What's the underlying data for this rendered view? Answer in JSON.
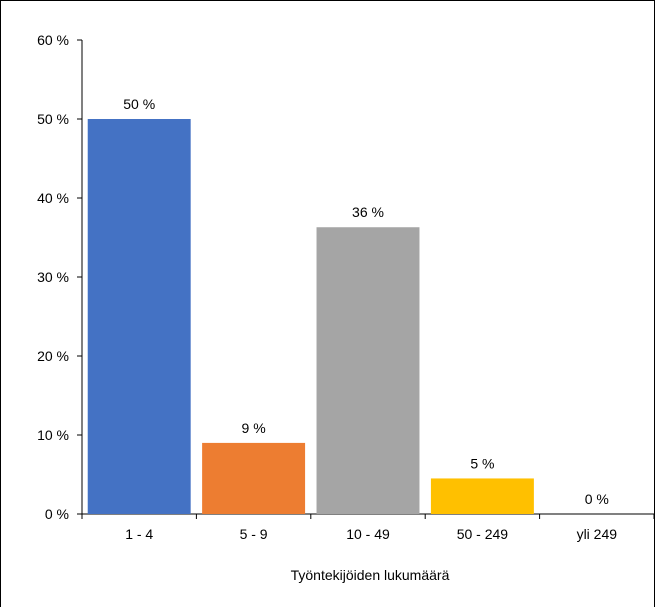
{
  "chart_data": {
    "type": "bar",
    "title": "",
    "xlabel": "Työntekijöiden  lukumäärä",
    "ylabel": "",
    "categories": [
      "1 - 4",
      "5 - 9",
      "10 - 49",
      "50 - 249",
      "yli 249"
    ],
    "values": [
      50,
      9,
      36.3,
      4.5,
      0
    ],
    "data_labels": [
      "50 %",
      "9 %",
      "36 %",
      "5 %",
      "0 %"
    ],
    "colors": [
      "#4472C4",
      "#ED7D31",
      "#A5A5A5",
      "#FFC000",
      "#5B9BD5"
    ],
    "ylim": [
      0,
      60
    ],
    "yticks": [
      0,
      10,
      20,
      30,
      40,
      50,
      60
    ],
    "ytick_labels": [
      "0 %",
      "10 %",
      "20 %",
      "30 %",
      "40 %",
      "50 %",
      "60 %"
    ],
    "grid": false,
    "legend": "none"
  }
}
